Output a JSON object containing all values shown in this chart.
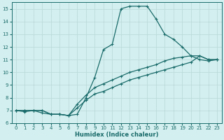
{
  "line1_x": [
    0,
    1,
    2,
    3,
    4,
    5,
    6,
    7,
    8,
    9,
    10,
    11,
    12,
    13,
    14,
    15,
    16,
    17,
    18,
    19,
    20,
    21,
    22,
    23
  ],
  "line1_y": [
    7.0,
    6.9,
    7.0,
    6.8,
    6.7,
    6.7,
    6.6,
    6.7,
    8.0,
    9.6,
    11.8,
    12.2,
    15.0,
    15.2,
    15.2,
    15.2,
    14.2,
    13.0,
    12.6,
    12.0,
    11.3,
    11.0,
    10.9,
    11.0
  ],
  "line2_x": [
    0,
    1,
    2,
    3,
    4,
    5,
    6,
    7,
    8,
    9,
    10,
    11,
    12,
    13,
    14,
    15,
    16,
    17,
    18,
    19,
    20,
    21,
    22,
    23
  ],
  "line2_y": [
    7.0,
    7.0,
    7.0,
    7.0,
    6.7,
    6.7,
    6.6,
    7.2,
    7.8,
    8.3,
    8.5,
    8.8,
    9.1,
    9.4,
    9.6,
    9.8,
    10.0,
    10.2,
    10.4,
    10.6,
    10.8,
    11.3,
    11.0,
    11.0
  ],
  "line3_x": [
    0,
    1,
    2,
    3,
    4,
    5,
    6,
    7,
    8,
    9,
    10,
    11,
    12,
    13,
    14,
    15,
    16,
    17,
    18,
    19,
    20,
    21,
    22,
    23
  ],
  "line3_y": [
    7.0,
    7.0,
    7.0,
    7.0,
    6.7,
    6.7,
    6.6,
    7.5,
    8.2,
    8.8,
    9.1,
    9.4,
    9.7,
    10.0,
    10.2,
    10.4,
    10.6,
    10.9,
    11.1,
    11.2,
    11.3,
    11.3,
    11.0,
    11.0
  ],
  "color": "#1a6b6b",
  "bg_color": "#d4efef",
  "grid_color": "#b8d8d8",
  "xlabel": "Humidex (Indice chaleur)",
  "xlim": [
    -0.5,
    23.5
  ],
  "ylim": [
    6,
    15.5
  ],
  "xticks": [
    0,
    1,
    2,
    3,
    4,
    5,
    6,
    7,
    8,
    9,
    10,
    11,
    12,
    13,
    14,
    15,
    16,
    17,
    18,
    19,
    20,
    21,
    22,
    23
  ],
  "yticks": [
    6,
    7,
    8,
    9,
    10,
    11,
    12,
    13,
    14,
    15
  ],
  "marker": "+",
  "markersize": 3.5,
  "linewidth": 0.9
}
